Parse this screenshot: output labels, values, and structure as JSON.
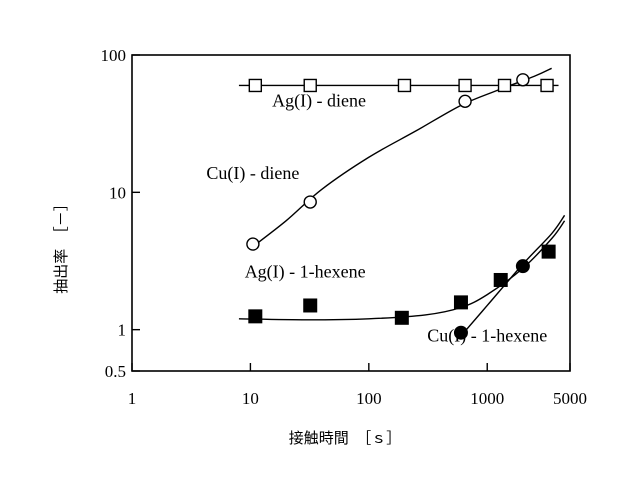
{
  "chart_data": {
    "type": "scatter",
    "xscale": "log",
    "yscale": "log",
    "xlim": [
      1,
      5000
    ],
    "ylim": [
      0.5,
      100
    ],
    "xlabel": "接触時間　［ｓ］",
    "ylabel": "抽出率　［－］",
    "x_ticks": [
      1,
      10,
      100,
      1000,
      5000
    ],
    "x_tick_labels": [
      "1",
      "10",
      "100",
      "1000",
      "5000"
    ],
    "y_ticks": [
      0.5,
      1,
      10,
      100
    ],
    "y_tick_labels": [
      "0.5",
      "1",
      "10",
      "100"
    ],
    "grid": false,
    "series": [
      {
        "name": "Ag(I) - diene",
        "marker": "open-square",
        "points": [
          [
            11,
            60
          ],
          [
            32,
            60
          ],
          [
            200,
            60
          ],
          [
            650,
            60
          ],
          [
            1400,
            60
          ],
          [
            3200,
            60
          ]
        ],
        "fit": [
          [
            8,
            60
          ],
          [
            4000,
            60
          ]
        ]
      },
      {
        "name": "Cu(I) - diene",
        "marker": "open-circle",
        "points": [
          [
            10.5,
            4.2
          ],
          [
            32,
            8.5
          ],
          [
            650,
            46
          ],
          [
            2000,
            66
          ]
        ],
        "fit": [
          [
            10,
            3.9
          ],
          [
            20,
            6.2
          ],
          [
            40,
            10.5
          ],
          [
            100,
            18
          ],
          [
            250,
            28
          ],
          [
            600,
            43
          ],
          [
            1200,
            55
          ],
          [
            2500,
            70
          ],
          [
            3500,
            80
          ]
        ]
      },
      {
        "name": "Ag(I) - 1-hexene",
        "marker": "filled-square",
        "points": [
          [
            11,
            1.25
          ],
          [
            32,
            1.5
          ],
          [
            190,
            1.22
          ],
          [
            600,
            1.58
          ],
          [
            1300,
            2.3
          ],
          [
            3300,
            3.7
          ]
        ],
        "fit": [
          [
            8,
            1.2
          ],
          [
            30,
            1.18
          ],
          [
            100,
            1.2
          ],
          [
            300,
            1.28
          ],
          [
            600,
            1.45
          ],
          [
            1000,
            1.8
          ],
          [
            2000,
            2.8
          ],
          [
            3500,
            4.6
          ],
          [
            4500,
            6.2
          ]
        ]
      },
      {
        "name": "Cu(I) - 1-hexene",
        "marker": "filled-circle",
        "points": [
          [
            600,
            0.95
          ],
          [
            2000,
            2.9
          ]
        ],
        "fit": [
          [
            600,
            0.9
          ],
          [
            1000,
            1.5
          ],
          [
            2000,
            3.0
          ],
          [
            3500,
            5.0
          ],
          [
            4500,
            6.8
          ]
        ]
      }
    ],
    "annotations": [
      {
        "text": "Ag(I) - diene",
        "x": 38,
        "y": 42
      },
      {
        "text": "Cu(I) - diene",
        "x": 10.5,
        "y": 12.5
      },
      {
        "text": "Ag(I) - 1-hexene",
        "x": 29,
        "y": 2.4
      },
      {
        "text": "Cu(I) - 1-hexene",
        "x": 1000,
        "y": 0.82
      }
    ]
  }
}
